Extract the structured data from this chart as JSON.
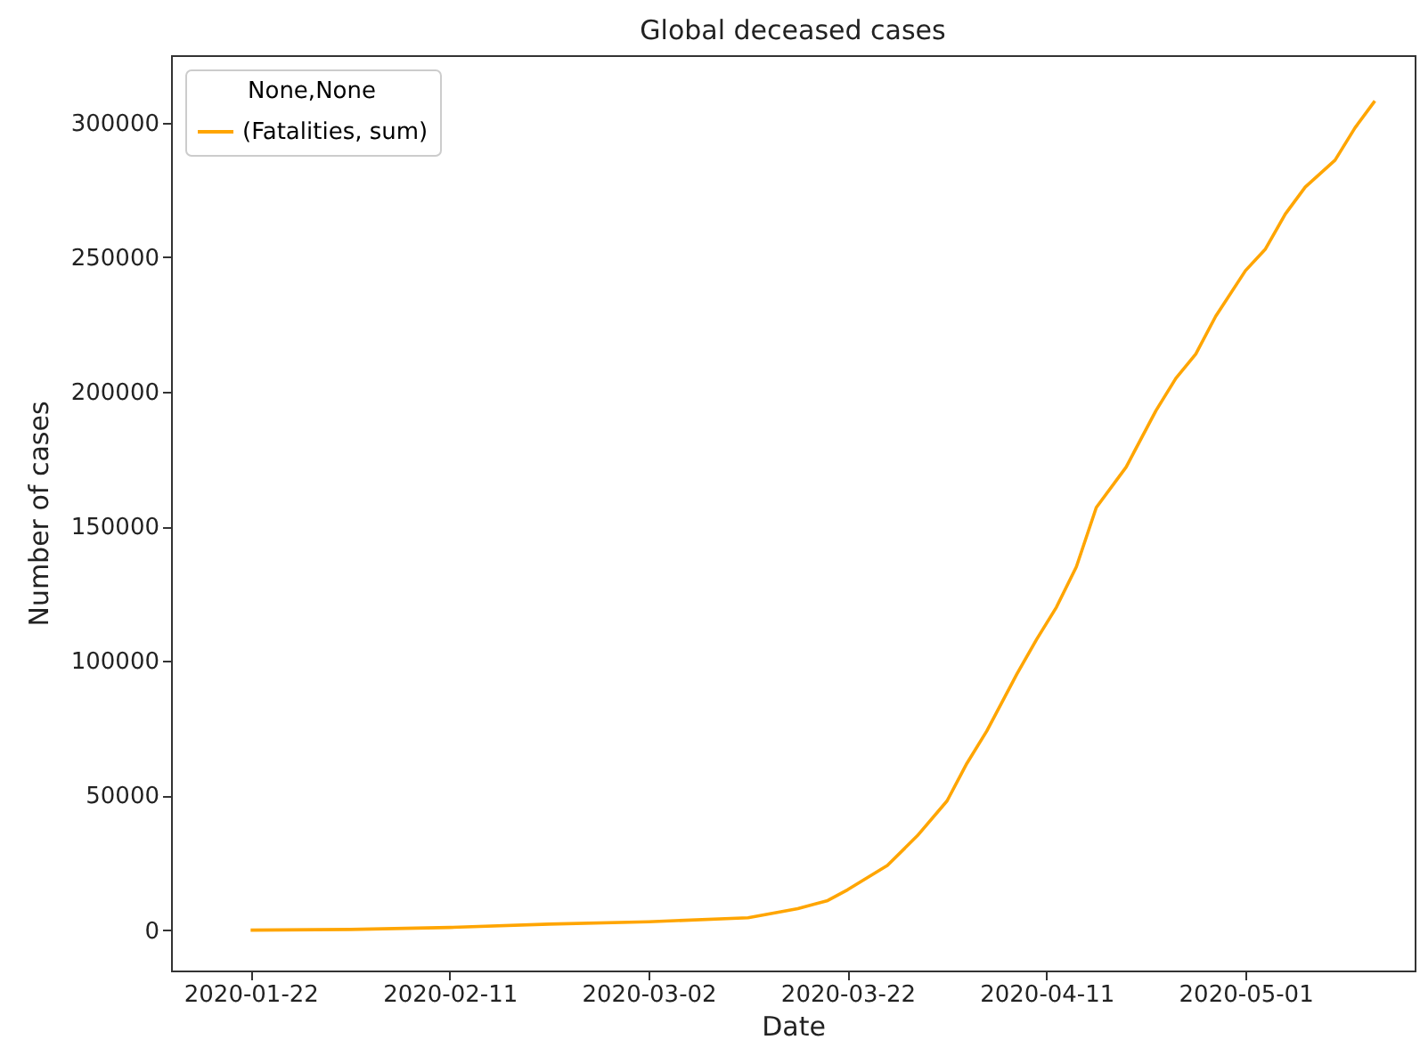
{
  "chart_data": {
    "type": "line",
    "title": "Global deceased cases",
    "xlabel": "Date",
    "ylabel": "Number of cases",
    "legend_title": "None,None",
    "legend": "top left",
    "grid": false,
    "x": [
      "2020-01-22",
      "2020-02-01",
      "2020-02-11",
      "2020-02-21",
      "2020-03-02",
      "2020-03-12",
      "2020-03-17",
      "2020-03-20",
      "2020-03-22",
      "2020-03-26",
      "2020-03-29",
      "2020-04-01",
      "2020-04-03",
      "2020-04-05",
      "2020-04-08",
      "2020-04-10",
      "2020-04-12",
      "2020-04-14",
      "2020-04-16",
      "2020-04-19",
      "2020-04-22",
      "2020-04-24",
      "2020-04-26",
      "2020-04-28",
      "2020-05-01",
      "2020-05-03",
      "2020-05-05",
      "2020-05-07",
      "2020-05-10",
      "2020-05-12",
      "2020-05-14"
    ],
    "series": [
      {
        "name": "(Fatalities, sum)",
        "color": "#ffa500",
        "values": [
          17,
          260,
          1000,
          2250,
          3100,
          4600,
          8000,
          11000,
          15000,
          24000,
          35000,
          48000,
          62000,
          74000,
          95000,
          108000,
          120000,
          135000,
          157000,
          172000,
          193000,
          205000,
          214000,
          228000,
          245000,
          253000,
          266000,
          276000,
          286000,
          298000,
          308000
        ]
      }
    ],
    "xlim": [
      "2020-01-14",
      "2020-05-18"
    ],
    "xticks": [
      "2020-01-22",
      "2020-02-11",
      "2020-03-02",
      "2020-03-22",
      "2020-04-11",
      "2020-05-01"
    ],
    "ylim": [
      -15000,
      325000
    ],
    "yticks": [
      0,
      50000,
      100000,
      150000,
      200000,
      250000,
      300000
    ]
  }
}
